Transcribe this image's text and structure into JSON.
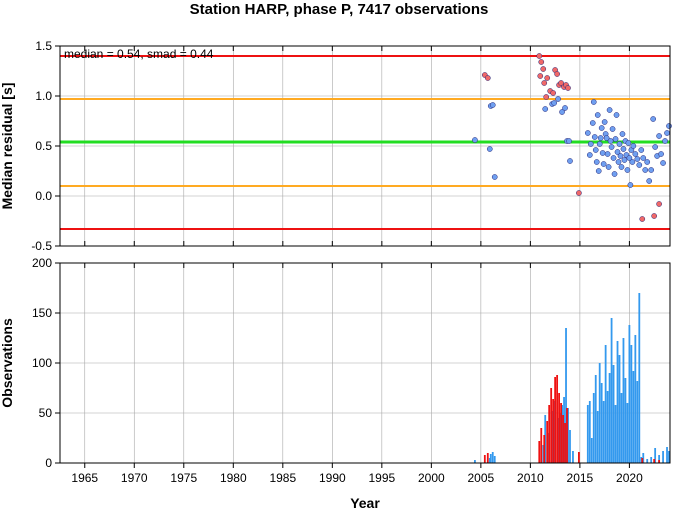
{
  "title": "Station HARP, phase P, 7417 observations",
  "stats_label": "median = 0.54, smad = 0.44",
  "colors": {
    "median_line": "#22dd22",
    "smad_band": "#ffaa22",
    "limit_band": "#ee1111",
    "in_range_points": "#6f9ff0",
    "outlier_points": "#f06868",
    "obs_in_range": "#3399ee",
    "obs_outlier": "#ee1111",
    "grid": "#a8a8a8"
  },
  "chart_data": [
    {
      "type": "scatter",
      "panel": "residuals",
      "xlabel": "",
      "ylabel": "Median residual [s]",
      "xlim": [
        1962.5,
        2024.1
      ],
      "ylim": [
        -0.5,
        1.5
      ],
      "yticks": [
        -0.5,
        0.0,
        0.5,
        1.0,
        1.5
      ],
      "ytick_labels": [
        "-0.5",
        "0.0",
        "0.5",
        "1.0",
        "1.5"
      ],
      "grid": true,
      "reference_lines": [
        {
          "name": "upper limit",
          "y": 1.4,
          "color": "#ee1111"
        },
        {
          "name": "upper smad",
          "y": 0.97,
          "color": "#ffaa22"
        },
        {
          "name": "median",
          "y": 0.54,
          "color": "#22dd22"
        },
        {
          "name": "lower smad",
          "y": 0.1,
          "color": "#ffaa22"
        },
        {
          "name": "lower limit",
          "y": -0.33,
          "color": "#ee1111"
        }
      ],
      "series": [
        {
          "role": "in_range",
          "color": "#6f9ff0",
          "points": [
            [
              2004.4,
              0.56
            ],
            [
              2005.9,
              0.47
            ],
            [
              2006.0,
              0.9
            ],
            [
              2006.2,
              0.91
            ],
            [
              2006.4,
              0.19
            ],
            [
              2011.5,
              0.87
            ],
            [
              2012.2,
              0.92
            ],
            [
              2012.4,
              0.93
            ],
            [
              2012.8,
              0.97
            ],
            [
              2013.2,
              0.84
            ],
            [
              2013.5,
              0.88
            ],
            [
              2013.7,
              0.55
            ],
            [
              2014.0,
              0.35
            ],
            [
              2013.9,
              0.55
            ],
            [
              2015.8,
              0.63
            ],
            [
              2016.0,
              0.41
            ],
            [
              2016.1,
              0.52
            ],
            [
              2016.3,
              0.73
            ],
            [
              2016.4,
              0.94
            ],
            [
              2016.5,
              0.59
            ],
            [
              2016.6,
              0.46
            ],
            [
              2016.7,
              0.34
            ],
            [
              2016.8,
              0.81
            ],
            [
              2016.9,
              0.25
            ],
            [
              2017.0,
              0.52
            ],
            [
              2017.1,
              0.58
            ],
            [
              2017.2,
              0.68
            ],
            [
              2017.3,
              0.43
            ],
            [
              2017.4,
              0.32
            ],
            [
              2017.5,
              0.74
            ],
            [
              2017.6,
              0.62
            ],
            [
              2017.7,
              0.58
            ],
            [
              2017.8,
              0.42
            ],
            [
              2017.9,
              0.29
            ],
            [
              2018.0,
              0.86
            ],
            [
              2018.1,
              0.55
            ],
            [
              2018.2,
              0.49
            ],
            [
              2018.3,
              0.67
            ],
            [
              2018.4,
              0.38
            ],
            [
              2018.5,
              0.22
            ],
            [
              2018.6,
              0.57
            ],
            [
              2018.7,
              0.81
            ],
            [
              2018.8,
              0.44
            ],
            [
              2018.9,
              0.34
            ],
            [
              2019.0,
              0.52
            ],
            [
              2019.1,
              0.4
            ],
            [
              2019.2,
              0.29
            ],
            [
              2019.3,
              0.62
            ],
            [
              2019.4,
              0.47
            ],
            [
              2019.5,
              0.36
            ],
            [
              2019.6,
              0.55
            ],
            [
              2019.7,
              0.41
            ],
            [
              2019.8,
              0.26
            ],
            [
              2019.9,
              0.53
            ],
            [
              2020.0,
              0.38
            ],
            [
              2020.1,
              0.11
            ],
            [
              2020.2,
              0.46
            ],
            [
              2020.3,
              0.34
            ],
            [
              2020.4,
              0.5
            ],
            [
              2020.6,
              0.42
            ],
            [
              2020.8,
              0.37
            ],
            [
              2021.0,
              0.31
            ],
            [
              2021.2,
              0.46
            ],
            [
              2021.4,
              0.38
            ],
            [
              2021.6,
              0.26
            ],
            [
              2021.8,
              0.34
            ],
            [
              2022.0,
              0.15
            ],
            [
              2022.2,
              0.26
            ],
            [
              2022.4,
              0.77
            ],
            [
              2022.6,
              0.49
            ],
            [
              2022.8,
              0.4
            ],
            [
              2023.0,
              0.6
            ],
            [
              2023.2,
              0.42
            ],
            [
              2023.4,
              0.33
            ],
            [
              2023.6,
              0.55
            ],
            [
              2023.8,
              0.63
            ],
            [
              2024.0,
              0.7
            ]
          ]
        },
        {
          "role": "outlier",
          "color": "#f06868",
          "points": [
            [
              2005.4,
              1.21
            ],
            [
              2005.7,
              1.18
            ],
            [
              2010.9,
              1.4
            ],
            [
              2011.1,
              1.34
            ],
            [
              2011.3,
              1.27
            ],
            [
              2011.0,
              1.2
            ],
            [
              2011.4,
              1.13
            ],
            [
              2011.6,
              0.99
            ],
            [
              2011.7,
              1.18
            ],
            [
              2012.0,
              1.05
            ],
            [
              2012.3,
              1.03
            ],
            [
              2012.5,
              1.26
            ],
            [
              2012.7,
              1.22
            ],
            [
              2012.9,
              1.11
            ],
            [
              2013.1,
              1.13
            ],
            [
              2013.4,
              1.09
            ],
            [
              2013.6,
              1.11
            ],
            [
              2013.8,
              1.08
            ],
            [
              2014.9,
              0.03
            ],
            [
              2021.3,
              -0.23
            ],
            [
              2022.5,
              -0.2
            ],
            [
              2023.0,
              -0.08
            ]
          ]
        }
      ]
    },
    {
      "type": "bar",
      "panel": "observations",
      "xlabel": "Year",
      "ylabel": "Observations",
      "xlim": [
        1962.5,
        2024.1
      ],
      "ylim": [
        0,
        200
      ],
      "yticks": [
        0,
        50,
        100,
        150,
        200
      ],
      "ytick_labels": [
        "0",
        "50",
        "100",
        "150",
        "200"
      ],
      "xticks": [
        1965,
        1970,
        1975,
        1980,
        1985,
        1990,
        1995,
        2000,
        2005,
        2010,
        2015,
        2020
      ],
      "xtick_labels": [
        "1965",
        "1970",
        "1975",
        "1980",
        "1985",
        "1990",
        "1995",
        "2000",
        "2005",
        "2010",
        "2015",
        "2020"
      ],
      "grid": true,
      "series": [
        {
          "role": "in_range",
          "color": "#3399ee",
          "bars": [
            [
              2004.4,
              3
            ],
            [
              2005.9,
              5
            ],
            [
              2006.0,
              9
            ],
            [
              2006.2,
              11
            ],
            [
              2006.4,
              7
            ],
            [
              2011.3,
              18
            ],
            [
              2011.5,
              48
            ],
            [
              2011.8,
              30
            ],
            [
              2012.2,
              52
            ],
            [
              2012.4,
              62
            ],
            [
              2012.8,
              45
            ],
            [
              2013.0,
              50
            ],
            [
              2013.2,
              58
            ],
            [
              2013.4,
              66
            ],
            [
              2013.6,
              135
            ],
            [
              2013.8,
              55
            ],
            [
              2014.0,
              33
            ],
            [
              2014.3,
              12
            ],
            [
              2015.8,
              58
            ],
            [
              2016.0,
              62
            ],
            [
              2016.2,
              25
            ],
            [
              2016.4,
              70
            ],
            [
              2016.6,
              88
            ],
            [
              2016.8,
              52
            ],
            [
              2017.0,
              100
            ],
            [
              2017.2,
              80
            ],
            [
              2017.4,
              62
            ],
            [
              2017.6,
              118
            ],
            [
              2017.8,
              72
            ],
            [
              2018.0,
              90
            ],
            [
              2018.2,
              145
            ],
            [
              2018.4,
              98
            ],
            [
              2018.6,
              58
            ],
            [
              2018.8,
              122
            ],
            [
              2019.0,
              108
            ],
            [
              2019.2,
              70
            ],
            [
              2019.4,
              125
            ],
            [
              2019.6,
              85
            ],
            [
              2019.8,
              60
            ],
            [
              2020.0,
              138
            ],
            [
              2020.2,
              118
            ],
            [
              2020.4,
              92
            ],
            [
              2020.6,
              128
            ],
            [
              2020.8,
              82
            ],
            [
              2021.0,
              170
            ],
            [
              2021.2,
              6
            ],
            [
              2021.4,
              10
            ],
            [
              2021.8,
              4
            ],
            [
              2022.2,
              6
            ],
            [
              2022.6,
              15
            ],
            [
              2023.0,
              8
            ],
            [
              2023.4,
              12
            ],
            [
              2023.8,
              16
            ],
            [
              2024.0,
              12
            ]
          ]
        },
        {
          "role": "outlier",
          "color": "#ee1111",
          "bars": [
            [
              2005.4,
              8
            ],
            [
              2005.7,
              10
            ],
            [
              2010.9,
              22
            ],
            [
              2011.1,
              35
            ],
            [
              2011.4,
              28
            ],
            [
              2011.7,
              42
            ],
            [
              2011.9,
              58
            ],
            [
              2012.1,
              75
            ],
            [
              2012.3,
              64
            ],
            [
              2012.5,
              86
            ],
            [
              2012.7,
              88
            ],
            [
              2012.9,
              70
            ],
            [
              2013.1,
              60
            ],
            [
              2013.3,
              48
            ],
            [
              2013.5,
              40
            ],
            [
              2013.7,
              55
            ],
            [
              2014.9,
              11
            ],
            [
              2021.3,
              5
            ],
            [
              2022.5,
              4
            ],
            [
              2023.0,
              3
            ]
          ]
        }
      ]
    }
  ]
}
